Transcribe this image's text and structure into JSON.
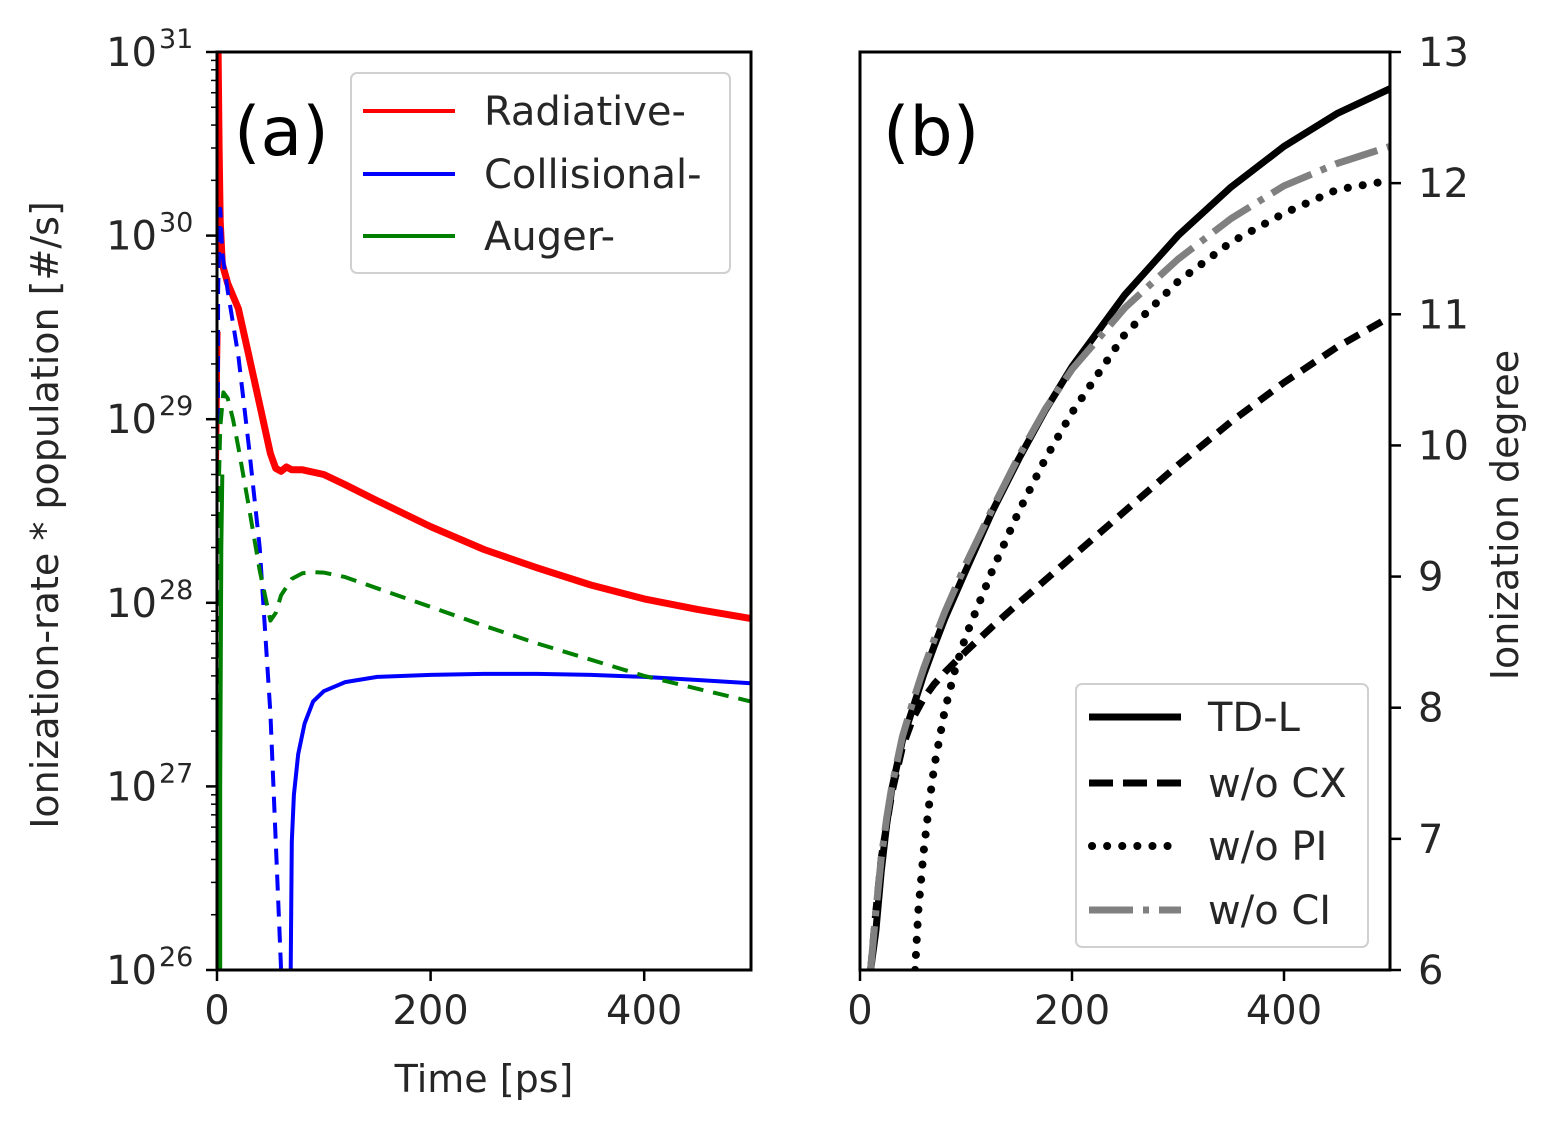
{
  "chart_data": [
    {
      "type": "line",
      "panel_label": "(a)",
      "xlabel": "Time [ps]",
      "ylabel": "Ionization-rate * population [#/s]",
      "xlim": [
        0,
        500
      ],
      "ylim": [
        1e+26,
        1e+31
      ],
      "yscale": "log",
      "xticks": [
        0,
        200,
        400
      ],
      "yticks": [
        {
          "base": "10",
          "exp": "26",
          "value": 1e+26
        },
        {
          "base": "10",
          "exp": "27",
          "value": 1e+27
        },
        {
          "base": "10",
          "exp": "28",
          "value": 1e+28
        },
        {
          "base": "10",
          "exp": "29",
          "value": 1e+29
        },
        {
          "base": "10",
          "exp": "30",
          "value": 1e+30
        },
        {
          "base": "10",
          "exp": "31",
          "value": 1e+31
        }
      ],
      "legend": {
        "placement": "upper-right",
        "entries": [
          "Radiative-",
          "Collisional-",
          "Auger-"
        ]
      },
      "series": [
        {
          "name": "Radiative-",
          "color": "#ff0000",
          "style": "solid",
          "width": 7,
          "x": [
            1,
            2,
            3,
            5,
            10,
            20,
            30,
            40,
            50,
            55,
            60,
            65,
            70,
            80,
            100,
            120,
            150,
            200,
            250,
            300,
            350,
            400,
            450,
            500
          ],
          "y": [
            1e+31,
            3e+30,
            1.2e+30,
            7e+29,
            5.5e+29,
            4e+29,
            2.2e+29,
            1.2e+29,
            6.5e+28,
            5.4e+28,
            5.2e+28,
            5.5e+28,
            5.3e+28,
            5.3e+28,
            5e+28,
            4.4e+28,
            3.6e+28,
            2.6e+28,
            1.95e+28,
            1.55e+28,
            1.25e+28,
            1.05e+28,
            9.2e+27,
            8.2e+27
          ]
        },
        {
          "name": "Radiative- (negative)",
          "color": "#ff0000",
          "style": "solid",
          "width": 3,
          "x": [
            0.5,
            1,
            1.5,
            2
          ],
          "y": [
            5.5e+28,
            1e+29,
            2e+29,
            3e+29
          ]
        },
        {
          "name": "Collisional-",
          "color": "#0000ff",
          "style": "dashed",
          "width": 4,
          "x": [
            0,
            1,
            3,
            5,
            10,
            20,
            30,
            40,
            50,
            60
          ],
          "y": [
            1e+26,
            5e+29,
            1.4e+30,
            8e+29,
            5e+29,
            2.2e+29,
            7e+28,
            2e+28,
            2.5e+27,
            1e+26
          ]
        },
        {
          "name": "Collisional- (positive)",
          "color": "#0000ff",
          "style": "solid",
          "width": 4,
          "x": [
            69,
            70,
            72,
            76,
            82,
            90,
            100,
            120,
            150,
            200,
            250,
            300,
            350,
            400,
            450,
            500
          ],
          "y": [
            1e+26,
            5e+26,
            9e+26,
            1.5e+27,
            2.2e+27,
            2.9e+27,
            3.3e+27,
            3.7e+27,
            3.95e+27,
            4.05e+27,
            4.1e+27,
            4.1e+27,
            4.05e+27,
            3.95e+27,
            3.8e+27,
            3.65e+27
          ]
        },
        {
          "name": "Auger-",
          "color": "#008000",
          "style": "dashed",
          "width": 4,
          "x": [
            0,
            1,
            3,
            6,
            10,
            15,
            20,
            30,
            40,
            50,
            55,
            60,
            70,
            80,
            90,
            100,
            120,
            150,
            200,
            250,
            300,
            350,
            400,
            450,
            500
          ],
          "y": [
            1e+26,
            3e+28,
            9e+28,
            1.4e+29,
            1.3e+29,
            1e+29,
            7e+28,
            3.3e+28,
            1.5e+28,
            8e+27,
            8.8e+27,
            1.1e+28,
            1.35e+28,
            1.45e+28,
            1.47e+28,
            1.46e+28,
            1.38e+28,
            1.2e+28,
            9.5e+27,
            7.5e+27,
            6e+27,
            4.9e+27,
            4e+27,
            3.4e+27,
            2.9e+27
          ]
        },
        {
          "name": "Auger- (positive)",
          "color": "#008000",
          "style": "solid",
          "width": 4,
          "x": [
            3,
            3,
            4,
            5
          ],
          "y": [
            1e+26,
            1e+27,
            2e+28,
            5e+28
          ]
        }
      ]
    },
    {
      "type": "line",
      "panel_label": "(b)",
      "ylabel": "Ionization degree",
      "xlim": [
        0,
        500
      ],
      "ylim": [
        6,
        13
      ],
      "xticks": [
        0,
        200,
        400
      ],
      "yticks": [
        6,
        7,
        8,
        9,
        10,
        11,
        12,
        13
      ],
      "legend": {
        "placement": "lower-right",
        "entries": [
          "TD-L",
          "w/o CX",
          "w/o PI",
          "w/o CI"
        ]
      },
      "series": [
        {
          "name": "TD-L",
          "color": "#000000",
          "style": "solid",
          "width": 7,
          "x": [
            10,
            15,
            20,
            25,
            30,
            40,
            50,
            60,
            70,
            80,
            100,
            125,
            150,
            175,
            200,
            250,
            300,
            350,
            400,
            450,
            500
          ],
          "y": [
            6,
            6.3,
            6.75,
            7.1,
            7.38,
            7.75,
            8.0,
            8.25,
            8.47,
            8.68,
            9.05,
            9.5,
            9.9,
            10.27,
            10.6,
            11.15,
            11.6,
            11.97,
            12.28,
            12.53,
            12.72
          ]
        },
        {
          "name": "w/o CX",
          "color": "#000000",
          "style": "dashed",
          "width": 7,
          "x": [
            10,
            15,
            20,
            30,
            40,
            50,
            60,
            70,
            80,
            100,
            125,
            150,
            200,
            250,
            300,
            350,
            400,
            450,
            500
          ],
          "y": [
            6,
            6.45,
            6.85,
            7.35,
            7.7,
            7.92,
            8.07,
            8.18,
            8.27,
            8.43,
            8.62,
            8.8,
            9.15,
            9.5,
            9.85,
            10.18,
            10.48,
            10.75,
            10.98
          ]
        },
        {
          "name": "w/o PI",
          "color": "#000000",
          "style": "dotted",
          "width": 8,
          "x": [
            52,
            55,
            60,
            65,
            70,
            80,
            90,
            100,
            125,
            150,
            175,
            200,
            250,
            300,
            350,
            400,
            450,
            500
          ],
          "y": [
            6,
            6.45,
            6.9,
            7.25,
            7.55,
            7.98,
            8.3,
            8.55,
            9.05,
            9.5,
            9.9,
            10.25,
            10.85,
            11.25,
            11.55,
            11.77,
            11.95,
            12.02
          ]
        },
        {
          "name": "w/o CI",
          "color": "#808080",
          "style": "dashdot",
          "width": 7,
          "x": [
            10,
            15,
            20,
            25,
            30,
            40,
            50,
            60,
            70,
            80,
            100,
            125,
            150,
            175,
            200,
            250,
            300,
            350,
            400,
            450,
            500
          ],
          "y": [
            6,
            6.45,
            6.85,
            7.15,
            7.4,
            7.78,
            8.05,
            8.3,
            8.52,
            8.73,
            9.1,
            9.52,
            9.92,
            10.28,
            10.58,
            11.05,
            11.42,
            11.73,
            11.98,
            12.15,
            12.28
          ]
        }
      ]
    }
  ]
}
